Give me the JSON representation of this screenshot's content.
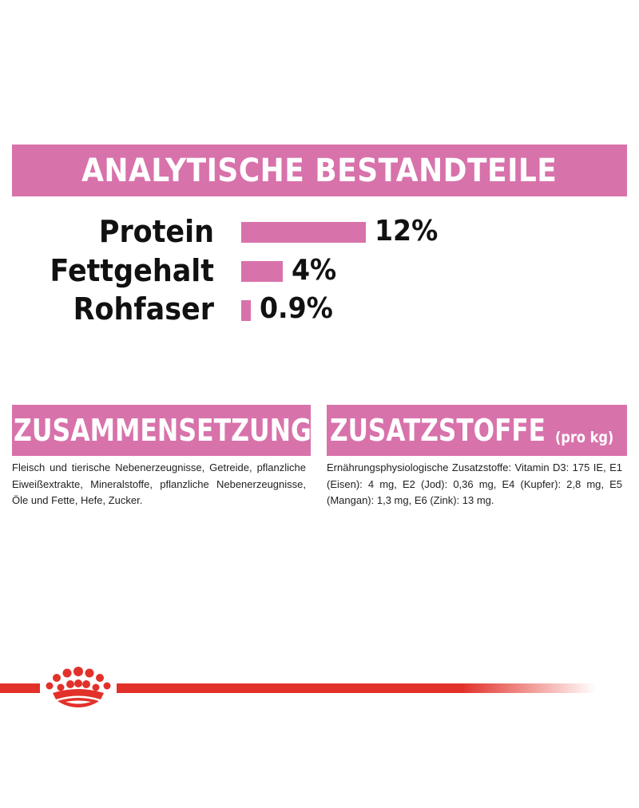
{
  "header": {
    "title": "ANALYTISCHE BESTANDTEILE"
  },
  "nutrients": [
    {
      "label": "Protein",
      "value_text": "12%",
      "value": 12
    },
    {
      "label": "Fettgehalt",
      "value_text": "4%",
      "value": 4
    },
    {
      "label": "Rohfaser",
      "value_text": "0.9%",
      "value": 0.9
    }
  ],
  "composition": {
    "title": "ZUSAMMENSETZUNG",
    "text": "Fleisch und tierische Nebenerzeugnisse, Getreide, pflanzliche Eiweißextrakte, Mineralstoffe, pflanzliche Nebenerzeugnisse, Öle und Fette, Hefe, Zucker."
  },
  "additives": {
    "title": "ZUSATZSTOFFE",
    "subtitle": "(pro kg)",
    "text": "Ernährungsphysiologische Zusatzstoffe: Vitamin D3: 175 IE, E1 (Eisen): 4 mg, E2 (Jod): 0,36 mg, E4 (Kupfer): 2,8 mg, E5 (Mangan): 1,3 mg, E6 (Zink): 13 mg."
  },
  "colors": {
    "accent_pink": "#d872ab",
    "brand_red": "#e2312a"
  },
  "footer": {
    "logo_icon": "royal-crown-icon"
  }
}
